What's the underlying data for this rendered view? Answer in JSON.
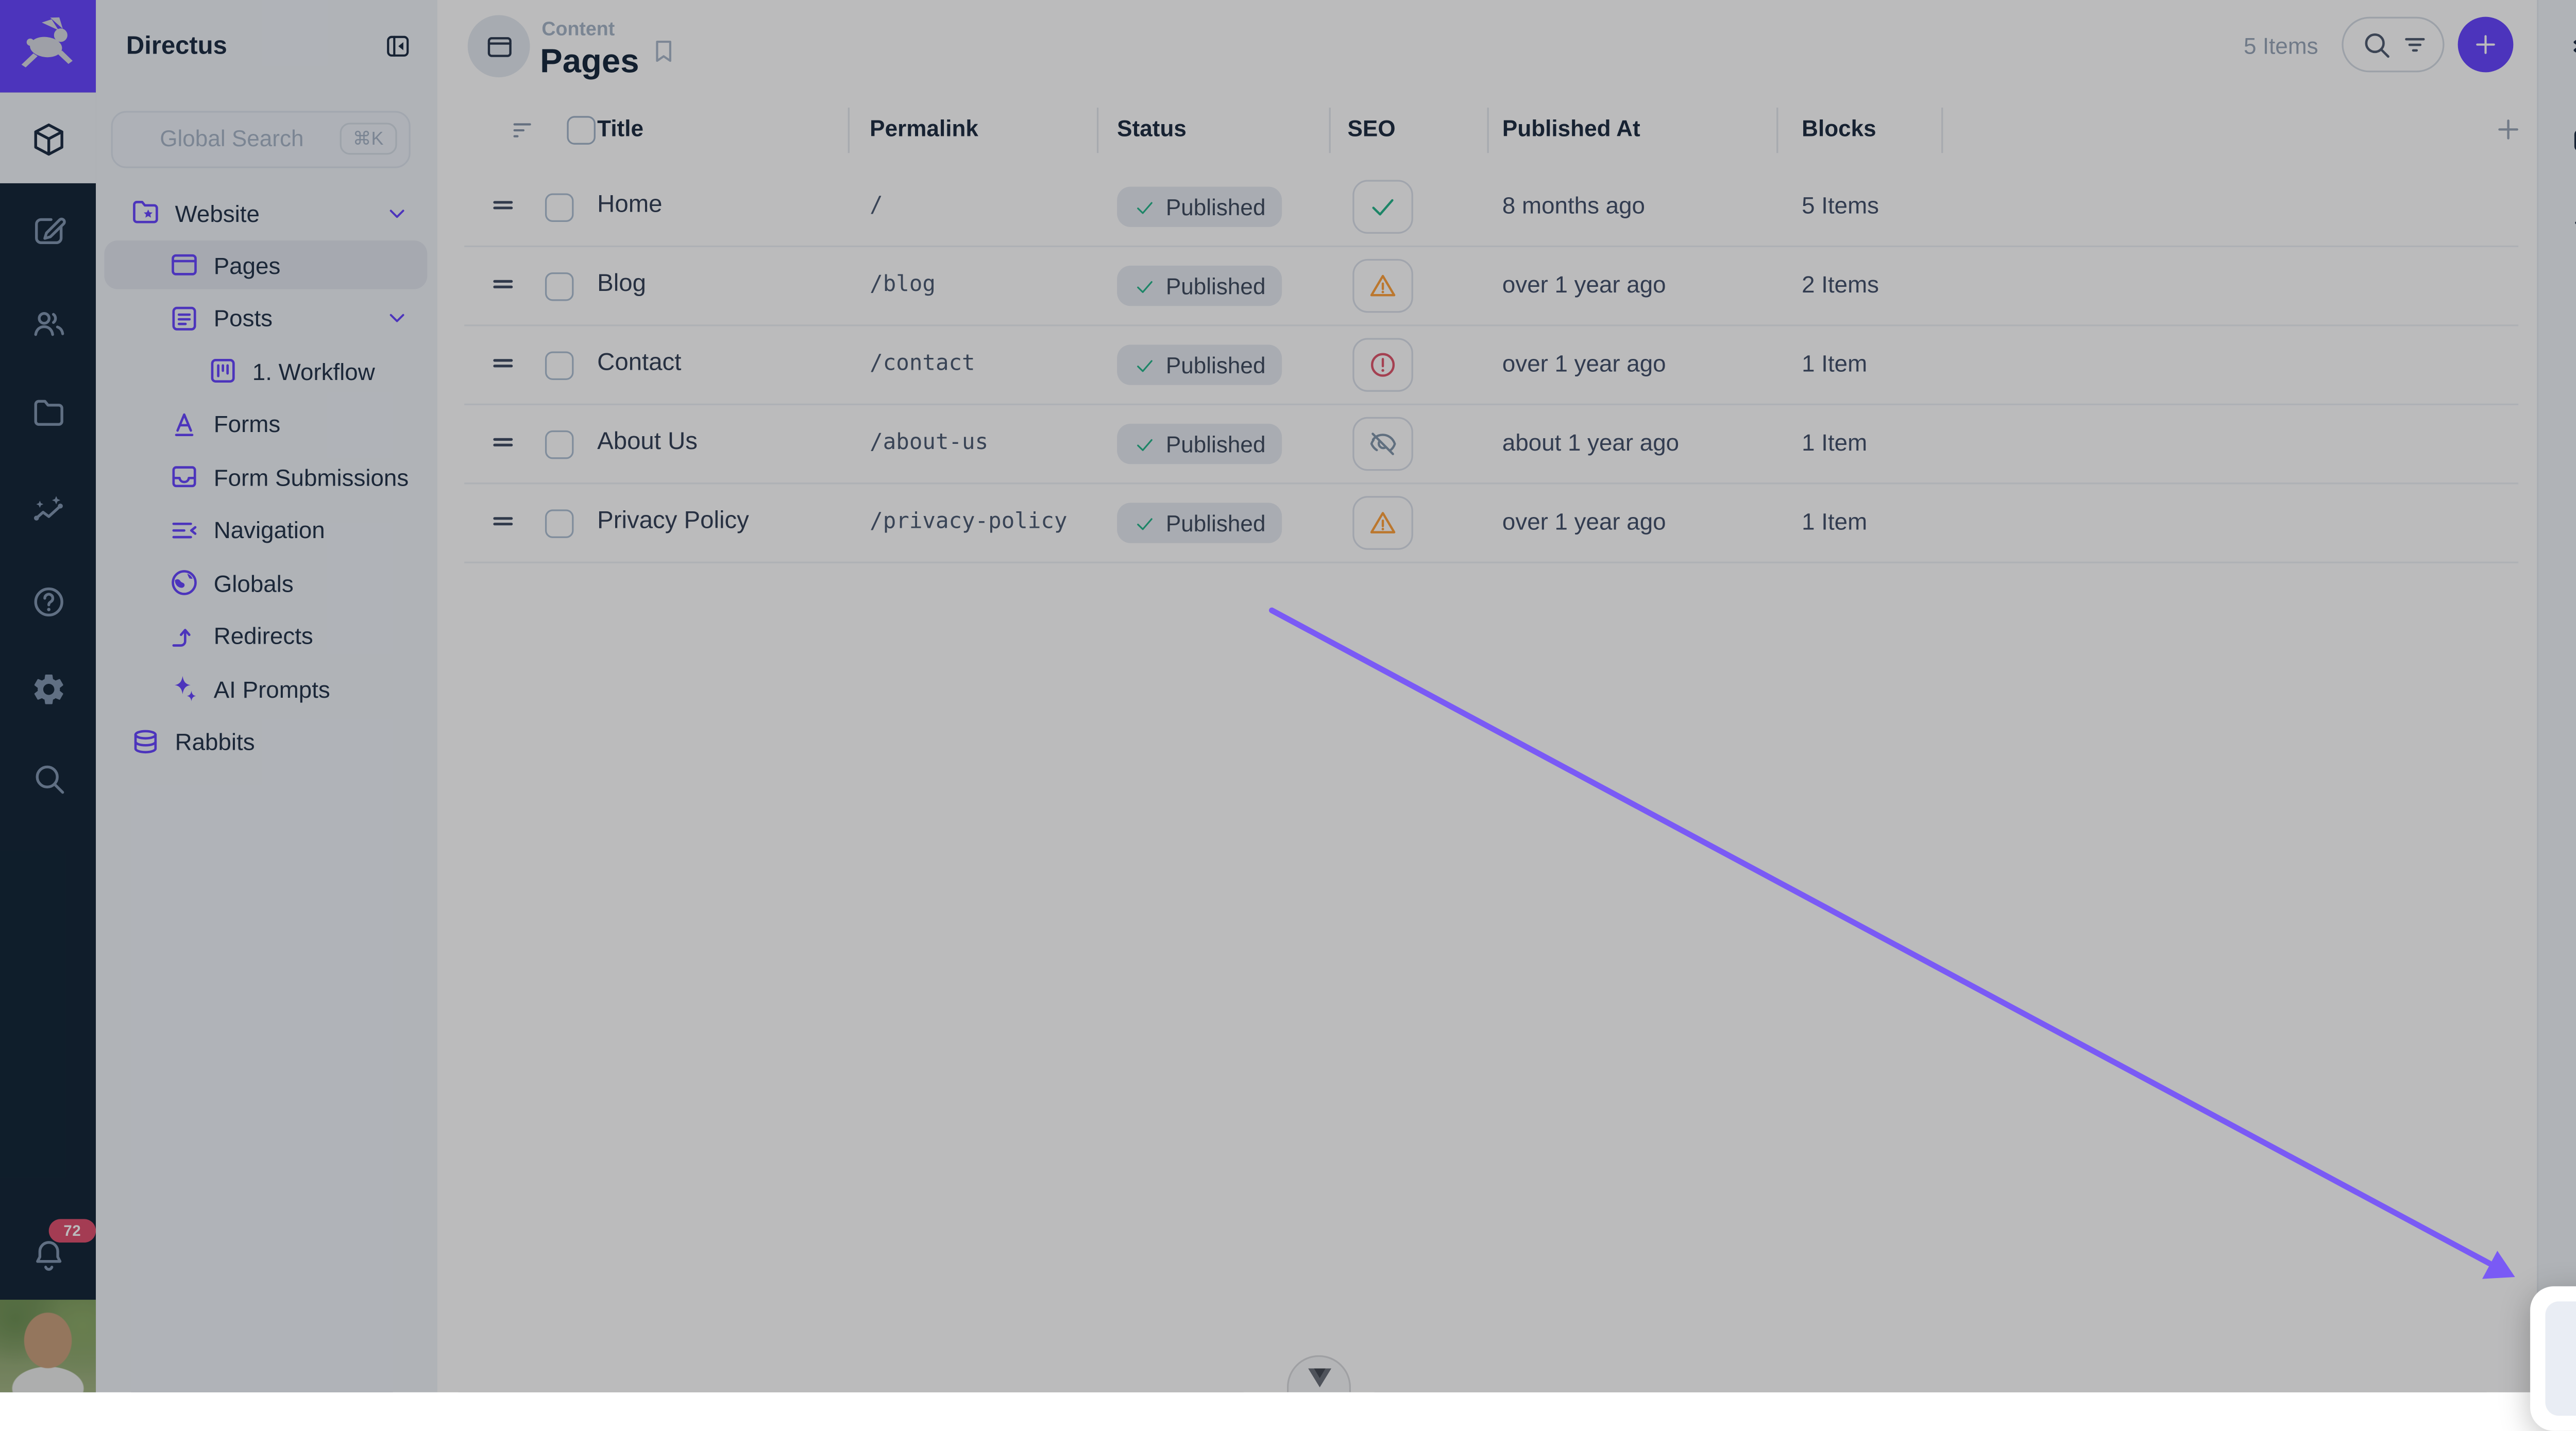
{
  "app": {
    "name": "Directus"
  },
  "module_bar": {
    "active_module": "cube",
    "modules": [
      "edit",
      "people",
      "folder",
      "insights",
      "help",
      "settings",
      "search"
    ],
    "notification_count": "72"
  },
  "sidebar": {
    "title": "Directus",
    "search": {
      "placeholder": "Global Search",
      "shortcut": "⌘K"
    },
    "items": [
      {
        "label": "Website",
        "icon": "folder-star",
        "level": 0,
        "chevron": true
      },
      {
        "label": "Pages",
        "icon": "window",
        "level": 1,
        "active": true
      },
      {
        "label": "Posts",
        "icon": "article",
        "level": 1,
        "chevron": true
      },
      {
        "label": "1. Workflow",
        "icon": "kanban",
        "level": 2
      },
      {
        "label": "Forms",
        "icon": "letter-a",
        "level": 1
      },
      {
        "label": "Form Submissions",
        "icon": "inbox",
        "level": 1
      },
      {
        "label": "Navigation",
        "icon": "segment",
        "level": 1
      },
      {
        "label": "Globals",
        "icon": "globe",
        "level": 1
      },
      {
        "label": "Redirects",
        "icon": "redirect",
        "level": 1
      },
      {
        "label": "AI Prompts",
        "icon": "sparkles",
        "level": 1
      },
      {
        "label": "Rabbits",
        "icon": "database",
        "level": 0
      }
    ]
  },
  "header": {
    "category": "Content",
    "title": "Pages",
    "count": "5 Items"
  },
  "table": {
    "columns": [
      "Title",
      "Permalink",
      "Status",
      "SEO",
      "Published At",
      "Blocks"
    ],
    "rows": [
      {
        "title": "Home",
        "permalink": "/",
        "status": "Published",
        "seo_state": "passed",
        "published_at": "8 months ago",
        "blocks": "5 Items"
      },
      {
        "title": "Blog",
        "permalink": "/blog",
        "status": "Published",
        "seo_state": "warning",
        "published_at": "over 1 year ago",
        "blocks": "2 Items"
      },
      {
        "title": "Contact",
        "permalink": "/contact",
        "status": "Published",
        "seo_state": "error",
        "published_at": "over 1 year ago",
        "blocks": "1 Item"
      },
      {
        "title": "About Us",
        "permalink": "/about-us",
        "status": "Published",
        "seo_state": "hidden",
        "published_at": "about 1 year ago",
        "blocks": "1 Item"
      },
      {
        "title": "Privacy Policy",
        "permalink": "/privacy-policy",
        "status": "Published",
        "seo_state": "warning",
        "published_at": "over 1 year ago",
        "blocks": "1 Item"
      }
    ]
  },
  "right_dock": {
    "items": [
      "layers",
      "archive-down",
      "sync-off",
      "swap-vert",
      "bolt"
    ]
  },
  "spotlight": {
    "icon": "sparkles"
  },
  "colors": {
    "accent": "#6644ff",
    "success": "#25b589",
    "warning": "#ffa13b",
    "danger": "#e0556b",
    "hidden": "#8296ab",
    "arrow": "#7a5af5"
  }
}
